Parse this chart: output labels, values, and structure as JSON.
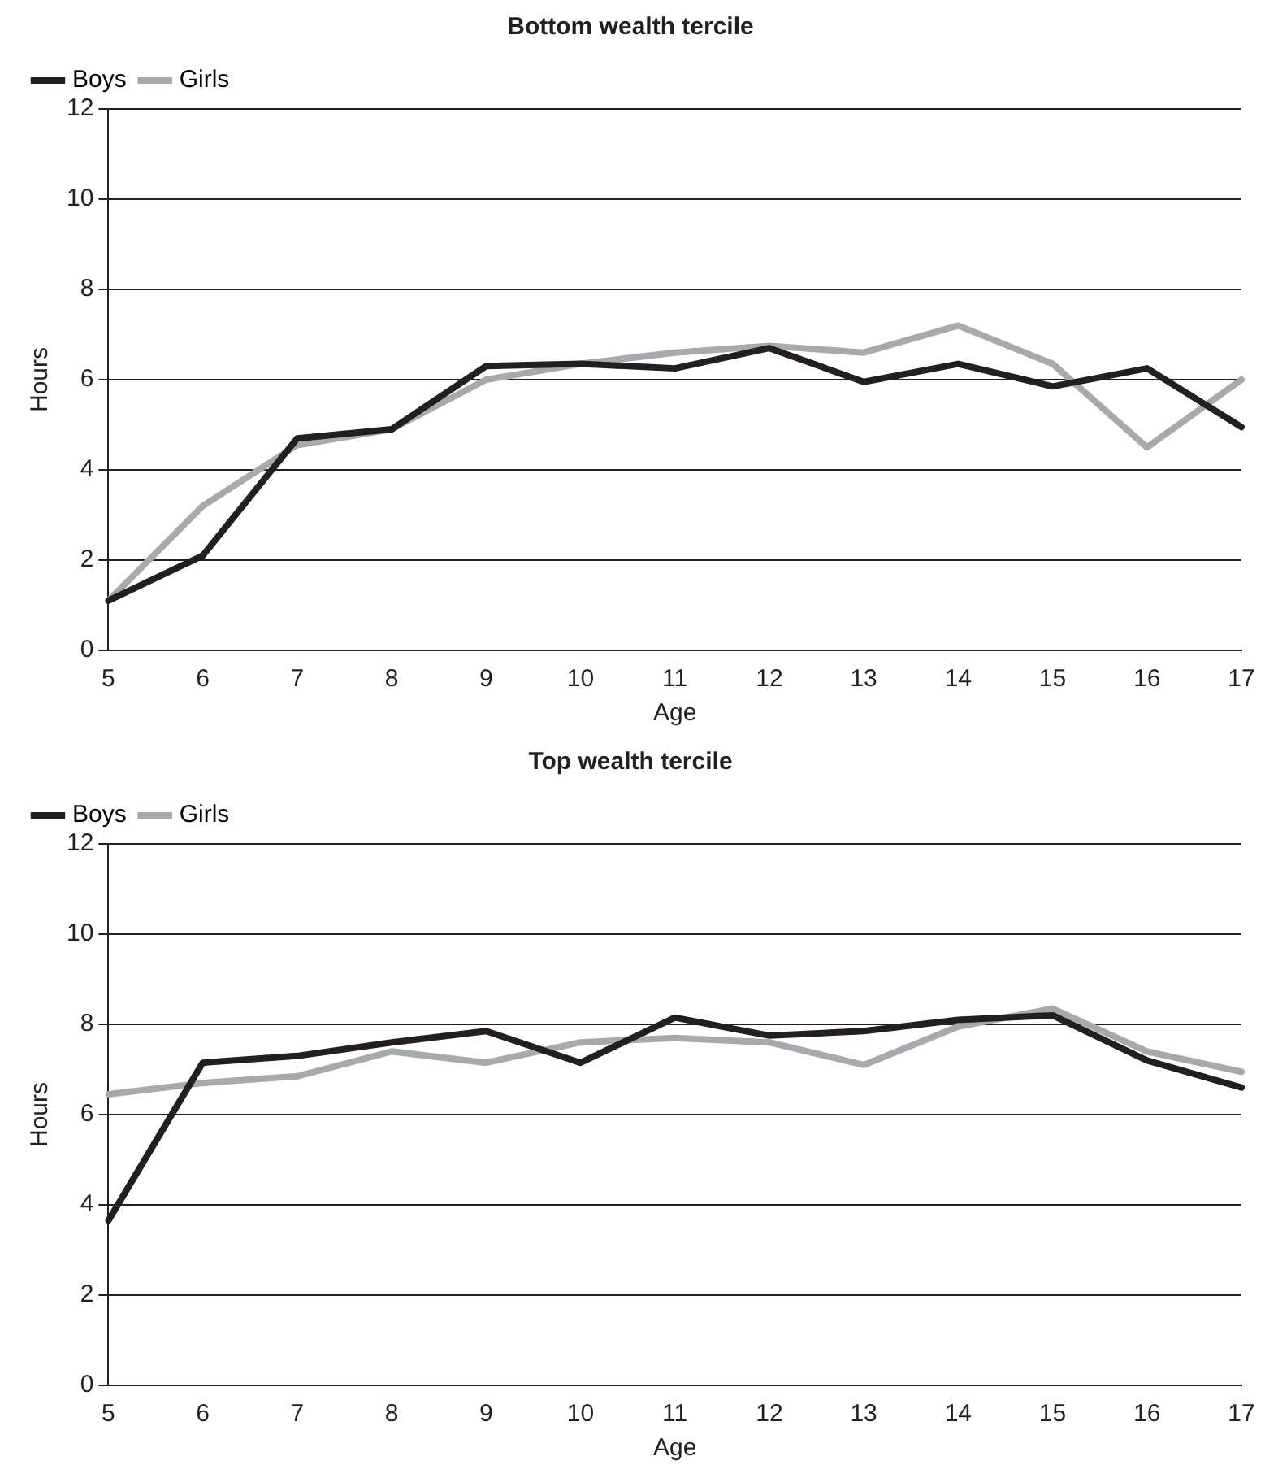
{
  "chart_data": [
    {
      "type": "line",
      "title": "Bottom wealth tercile",
      "xlabel": "Age",
      "ylabel": "Hours",
      "categories": [
        "5",
        "6",
        "7",
        "8",
        "9",
        "10",
        "11",
        "12",
        "13",
        "14",
        "15",
        "16",
        "17"
      ],
      "series": [
        {
          "name": "Boys",
          "color": "#231f20",
          "values": [
            1.1,
            2.1,
            4.7,
            4.9,
            6.3,
            6.35,
            6.25,
            6.7,
            5.95,
            6.35,
            5.85,
            6.25,
            4.95
          ]
        },
        {
          "name": "Girls",
          "color": "#a7a9ac",
          "values": [
            1.1,
            3.2,
            4.55,
            4.9,
            6.0,
            6.35,
            6.6,
            6.75,
            6.6,
            7.2,
            6.35,
            4.5,
            6.0
          ]
        }
      ],
      "ylim": [
        0,
        12
      ],
      "yticks": [
        0,
        2,
        4,
        6,
        8,
        10,
        12
      ],
      "grid": "y",
      "legend": "top left",
      "marker": "none",
      "line_style": "solid"
    },
    {
      "type": "line",
      "title": "Top wealth tercile",
      "xlabel": "Age",
      "ylabel": "Hours",
      "categories": [
        "5",
        "6",
        "7",
        "8",
        "9",
        "10",
        "11",
        "12",
        "13",
        "14",
        "15",
        "16",
        "17"
      ],
      "series": [
        {
          "name": "Boys",
          "color": "#231f20",
          "values": [
            3.65,
            7.15,
            7.3,
            7.6,
            7.85,
            7.15,
            8.15,
            7.75,
            7.85,
            8.1,
            8.2,
            7.2,
            6.6
          ]
        },
        {
          "name": "Girls",
          "color": "#a7a9ac",
          "values": [
            6.45,
            6.7,
            6.85,
            7.4,
            7.15,
            7.6,
            7.7,
            7.6,
            7.1,
            7.95,
            8.35,
            7.4,
            6.95
          ]
        }
      ],
      "ylim": [
        0,
        12
      ],
      "yticks": [
        0,
        2,
        4,
        6,
        8,
        10,
        12
      ],
      "grid": "y",
      "legend": "top left",
      "marker": "none",
      "line_style": "solid"
    }
  ]
}
